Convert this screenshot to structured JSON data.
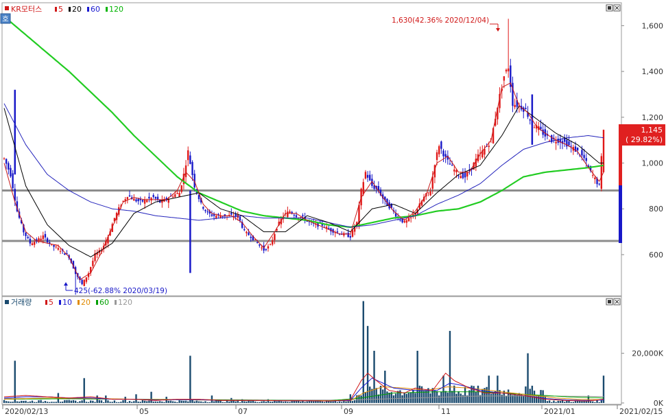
{
  "price_panel": {
    "stock_name": "KR모터스",
    "ma_legend": [
      {
        "label": "5",
        "color": "#d01818"
      },
      {
        "label": "20",
        "color": "#000000"
      },
      {
        "label": "60",
        "color": "#1a1ad0"
      },
      {
        "label": "120",
        "color": "#00b400"
      }
    ],
    "mode_icon_label": "호",
    "high_annotation": "1,630(42.36% 2020/12/04)",
    "low_annotation": "425(-62.88% 2020/03/19)",
    "current_price": "1,145",
    "current_change": "( 29.82%)",
    "y_ticks": [
      "1,600",
      "1,400",
      "1,200",
      "1,000",
      "800",
      "600"
    ]
  },
  "volume_panel": {
    "title": "거래량",
    "ma_legend": [
      {
        "label": "5",
        "color": "#d01818"
      },
      {
        "label": "10",
        "color": "#1a1ad0"
      },
      {
        "label": "20",
        "color": "#e08a00"
      },
      {
        "label": "60",
        "color": "#00a000"
      },
      {
        "label": "120",
        "color": "#999999"
      }
    ],
    "y_ticks": [
      "20,000K",
      "0K"
    ]
  },
  "x_axis": {
    "labels": [
      "2020/02/13",
      "05",
      "07",
      "09",
      "11",
      "2021/01",
      "2021/02/15"
    ]
  },
  "colors": {
    "up": "#e01818",
    "down": "#1818c8",
    "volume_bar": "#1a4a6e",
    "support_line": "#8c8c8c",
    "ma120": "#22cc22"
  },
  "chart_data": {
    "type": "candlestick",
    "y_range": [
      420,
      1700
    ],
    "horizontal_lines": [
      880,
      660
    ],
    "high": {
      "value": 1630,
      "date": "2020/12/04",
      "pct": 42.36
    },
    "low": {
      "value": 425,
      "date": "2020/03/19",
      "pct": -62.88
    },
    "last_close": 1145,
    "price_path": [
      [
        0,
        1020
      ],
      [
        3,
        950
      ],
      [
        6,
        790
      ],
      [
        9,
        700
      ],
      [
        12,
        650
      ],
      [
        15,
        660
      ],
      [
        18,
        680
      ],
      [
        22,
        640
      ],
      [
        26,
        620
      ],
      [
        30,
        590
      ],
      [
        33,
        520
      ],
      [
        36,
        470
      ],
      [
        39,
        520
      ],
      [
        42,
        600
      ],
      [
        45,
        620
      ],
      [
        48,
        680
      ],
      [
        51,
        760
      ],
      [
        54,
        820
      ],
      [
        57,
        860
      ],
      [
        60,
        840
      ],
      [
        63,
        830
      ],
      [
        66,
        840
      ],
      [
        69,
        850
      ],
      [
        72,
        830
      ],
      [
        75,
        840
      ],
      [
        78,
        860
      ],
      [
        81,
        870
      ],
      [
        83,
        950
      ],
      [
        85,
        1050
      ],
      [
        88,
        900
      ],
      [
        91,
        820
      ],
      [
        94,
        780
      ],
      [
        97,
        770
      ],
      [
        100,
        770
      ],
      [
        104,
        770
      ],
      [
        108,
        770
      ],
      [
        111,
        700
      ],
      [
        114,
        680
      ],
      [
        117,
        650
      ],
      [
        120,
        620
      ],
      [
        123,
        640
      ],
      [
        126,
        720
      ],
      [
        129,
        770
      ],
      [
        132,
        790
      ],
      [
        135,
        770
      ],
      [
        138,
        760
      ],
      [
        141,
        740
      ],
      [
        144,
        730
      ],
      [
        147,
        730
      ],
      [
        150,
        710
      ],
      [
        153,
        700
      ],
      [
        156,
        690
      ],
      [
        160,
        680
      ],
      [
        163,
        740
      ],
      [
        165,
        880
      ],
      [
        167,
        960
      ],
      [
        170,
        900
      ],
      [
        173,
        880
      ],
      [
        176,
        830
      ],
      [
        179,
        800
      ],
      [
        182,
        760
      ],
      [
        185,
        740
      ],
      [
        188,
        760
      ],
      [
        191,
        800
      ],
      [
        194,
        850
      ],
      [
        197,
        880
      ],
      [
        199,
        1000
      ],
      [
        201,
        1080
      ],
      [
        204,
        1020
      ],
      [
        207,
        980
      ],
      [
        210,
        950
      ],
      [
        213,
        940
      ],
      [
        216,
        980
      ],
      [
        219,
        1030
      ],
      [
        222,
        1060
      ],
      [
        225,
        1100
      ],
      [
        228,
        1250
      ],
      [
        231,
        1380
      ],
      [
        233,
        1420
      ],
      [
        235,
        1260
      ],
      [
        238,
        1250
      ],
      [
        241,
        1230
      ],
      [
        244,
        1170
      ],
      [
        247,
        1150
      ],
      [
        250,
        1120
      ],
      [
        253,
        1100
      ],
      [
        256,
        1100
      ],
      [
        259,
        1090
      ],
      [
        262,
        1070
      ],
      [
        265,
        1050
      ],
      [
        268,
        1020
      ],
      [
        271,
        960
      ],
      [
        273,
        930
      ],
      [
        275,
        900
      ],
      [
        277,
        1145
      ]
    ],
    "ma5_path": [
      [
        0,
        1000
      ],
      [
        5,
        830
      ],
      [
        10,
        700
      ],
      [
        15,
        660
      ],
      [
        20,
        650
      ],
      [
        25,
        640
      ],
      [
        30,
        590
      ],
      [
        35,
        490
      ],
      [
        40,
        520
      ],
      [
        45,
        610
      ],
      [
        50,
        720
      ],
      [
        55,
        830
      ],
      [
        60,
        850
      ],
      [
        65,
        840
      ],
      [
        70,
        840
      ],
      [
        75,
        840
      ],
      [
        80,
        880
      ],
      [
        84,
        960
      ],
      [
        88,
        920
      ],
      [
        92,
        820
      ],
      [
        96,
        780
      ],
      [
        100,
        770
      ],
      [
        105,
        770
      ],
      [
        110,
        740
      ],
      [
        115,
        680
      ],
      [
        120,
        630
      ],
      [
        125,
        700
      ],
      [
        130,
        780
      ],
      [
        135,
        780
      ],
      [
        140,
        750
      ],
      [
        145,
        730
      ],
      [
        150,
        710
      ],
      [
        155,
        690
      ],
      [
        160,
        690
      ],
      [
        165,
        850
      ],
      [
        170,
        920
      ],
      [
        175,
        850
      ],
      [
        180,
        790
      ],
      [
        185,
        750
      ],
      [
        190,
        790
      ],
      [
        195,
        860
      ],
      [
        200,
        1000
      ],
      [
        205,
        1030
      ],
      [
        210,
        960
      ],
      [
        215,
        960
      ],
      [
        220,
        1040
      ],
      [
        225,
        1100
      ],
      [
        230,
        1330
      ],
      [
        234,
        1350
      ],
      [
        238,
        1250
      ],
      [
        242,
        1220
      ],
      [
        246,
        1160
      ],
      [
        250,
        1130
      ],
      [
        255,
        1100
      ],
      [
        260,
        1080
      ],
      [
        265,
        1050
      ],
      [
        270,
        980
      ],
      [
        275,
        920
      ],
      [
        277,
        960
      ]
    ],
    "ma20_path": [
      [
        0,
        1240
      ],
      [
        10,
        900
      ],
      [
        20,
        730
      ],
      [
        30,
        640
      ],
      [
        40,
        590
      ],
      [
        50,
        650
      ],
      [
        60,
        780
      ],
      [
        70,
        830
      ],
      [
        80,
        850
      ],
      [
        90,
        870
      ],
      [
        100,
        800
      ],
      [
        110,
        770
      ],
      [
        120,
        700
      ],
      [
        130,
        700
      ],
      [
        140,
        770
      ],
      [
        150,
        740
      ],
      [
        160,
        700
      ],
      [
        170,
        800
      ],
      [
        180,
        820
      ],
      [
        190,
        780
      ],
      [
        200,
        870
      ],
      [
        210,
        950
      ],
      [
        220,
        990
      ],
      [
        230,
        1120
      ],
      [
        238,
        1250
      ],
      [
        245,
        1200
      ],
      [
        255,
        1130
      ],
      [
        265,
        1080
      ],
      [
        275,
        1000
      ]
    ],
    "ma60_path": [
      [
        0,
        1260
      ],
      [
        10,
        1080
      ],
      [
        20,
        950
      ],
      [
        30,
        880
      ],
      [
        40,
        830
      ],
      [
        50,
        800
      ],
      [
        60,
        790
      ],
      [
        70,
        770
      ],
      [
        80,
        760
      ],
      [
        90,
        750
      ],
      [
        100,
        760
      ],
      [
        110,
        770
      ],
      [
        120,
        760
      ],
      [
        130,
        760
      ],
      [
        140,
        760
      ],
      [
        150,
        740
      ],
      [
        160,
        720
      ],
      [
        170,
        730
      ],
      [
        180,
        750
      ],
      [
        190,
        770
      ],
      [
        200,
        820
      ],
      [
        210,
        860
      ],
      [
        220,
        910
      ],
      [
        230,
        990
      ],
      [
        240,
        1060
      ],
      [
        250,
        1090
      ],
      [
        260,
        1110
      ],
      [
        270,
        1120
      ],
      [
        277,
        1110
      ]
    ],
    "ma120_path": [
      [
        0,
        1640
      ],
      [
        10,
        1560
      ],
      [
        20,
        1480
      ],
      [
        30,
        1400
      ],
      [
        40,
        1310
      ],
      [
        50,
        1220
      ],
      [
        60,
        1120
      ],
      [
        70,
        1030
      ],
      [
        80,
        940
      ],
      [
        90,
        870
      ],
      [
        100,
        830
      ],
      [
        110,
        790
      ],
      [
        120,
        770
      ],
      [
        130,
        760
      ],
      [
        140,
        750
      ],
      [
        150,
        730
      ],
      [
        160,
        720
      ],
      [
        170,
        740
      ],
      [
        180,
        760
      ],
      [
        190,
        770
      ],
      [
        200,
        790
      ],
      [
        210,
        800
      ],
      [
        220,
        830
      ],
      [
        230,
        880
      ],
      [
        240,
        940
      ],
      [
        250,
        960
      ],
      [
        260,
        970
      ],
      [
        270,
        980
      ],
      [
        277,
        990
      ]
    ],
    "volume_range": [
      0,
      42000
    ],
    "volume_spikes": [
      [
        5,
        17000
      ],
      [
        25,
        4000
      ],
      [
        37,
        10000
      ],
      [
        43,
        3000
      ],
      [
        47,
        3000
      ],
      [
        56,
        2500
      ],
      [
        61,
        3500
      ],
      [
        68,
        4500
      ],
      [
        75,
        2500
      ],
      [
        86,
        19000
      ],
      [
        96,
        3000
      ],
      [
        105,
        2000
      ],
      [
        110,
        1500
      ],
      [
        122,
        1500
      ],
      [
        160,
        3500
      ],
      [
        166,
        41000
      ],
      [
        168,
        31000
      ],
      [
        171,
        21000
      ],
      [
        176,
        13000
      ],
      [
        191,
        21000
      ],
      [
        198,
        6000
      ],
      [
        203,
        11000
      ],
      [
        206,
        29000
      ],
      [
        208,
        7000
      ],
      [
        216,
        7000
      ],
      [
        224,
        11000
      ],
      [
        228,
        11000
      ],
      [
        236,
        4000
      ],
      [
        242,
        20000
      ],
      [
        270,
        3000
      ],
      [
        277,
        11000
      ]
    ],
    "volume_ma": {
      "ma5": [
        [
          0,
          2500
        ],
        [
          10,
          3000
        ],
        [
          20,
          2500
        ],
        [
          30,
          2000
        ],
        [
          40,
          2500
        ],
        [
          50,
          1500
        ],
        [
          60,
          1500
        ],
        [
          70,
          1000
        ],
        [
          80,
          1500
        ],
        [
          90,
          1500
        ],
        [
          100,
          1000
        ],
        [
          110,
          1000
        ],
        [
          120,
          1000
        ],
        [
          130,
          900
        ],
        [
          140,
          900
        ],
        [
          150,
          800
        ],
        [
          160,
          1200
        ],
        [
          165,
          9000
        ],
        [
          168,
          12000
        ],
        [
          172,
          9000
        ],
        [
          178,
          5000
        ],
        [
          185,
          4000
        ],
        [
          190,
          6000
        ],
        [
          198,
          5000
        ],
        [
          204,
          12000
        ],
        [
          208,
          9000
        ],
        [
          215,
          6000
        ],
        [
          222,
          4000
        ],
        [
          230,
          4000
        ],
        [
          240,
          3000
        ],
        [
          250,
          1500
        ],
        [
          260,
          1000
        ],
        [
          270,
          800
        ],
        [
          277,
          1500
        ]
      ],
      "ma10": [
        [
          0,
          2000
        ],
        [
          10,
          2500
        ],
        [
          20,
          2500
        ],
        [
          30,
          2000
        ],
        [
          40,
          2000
        ],
        [
          50,
          1500
        ],
        [
          60,
          1500
        ],
        [
          70,
          1200
        ],
        [
          80,
          1300
        ],
        [
          90,
          1300
        ],
        [
          100,
          1000
        ],
        [
          110,
          1000
        ],
        [
          120,
          1000
        ],
        [
          130,
          900
        ],
        [
          140,
          900
        ],
        [
          150,
          800
        ],
        [
          160,
          1000
        ],
        [
          165,
          6000
        ],
        [
          170,
          10000
        ],
        [
          175,
          8000
        ],
        [
          180,
          6000
        ],
        [
          190,
          5000
        ],
        [
          200,
          5000
        ],
        [
          206,
          8000
        ],
        [
          212,
          7000
        ],
        [
          220,
          5000
        ],
        [
          230,
          4000
        ],
        [
          240,
          3000
        ],
        [
          250,
          1800
        ],
        [
          260,
          1200
        ],
        [
          270,
          1000
        ],
        [
          277,
          1200
        ]
      ],
      "ma20": [
        [
          0,
          1500
        ],
        [
          20,
          2000
        ],
        [
          40,
          1800
        ],
        [
          60,
          1500
        ],
        [
          80,
          1300
        ],
        [
          100,
          1100
        ],
        [
          120,
          1000
        ],
        [
          140,
          900
        ],
        [
          160,
          900
        ],
        [
          166,
          4000
        ],
        [
          175,
          6500
        ],
        [
          185,
          6000
        ],
        [
          195,
          5000
        ],
        [
          205,
          6500
        ],
        [
          215,
          6000
        ],
        [
          225,
          5000
        ],
        [
          235,
          4000
        ],
        [
          245,
          3000
        ],
        [
          255,
          2000
        ],
        [
          265,
          1500
        ],
        [
          277,
          1300
        ]
      ],
      "ma60": [
        [
          0,
          1500
        ],
        [
          30,
          1700
        ],
        [
          60,
          1500
        ],
        [
          90,
          1300
        ],
        [
          120,
          1100
        ],
        [
          150,
          900
        ],
        [
          165,
          2000
        ],
        [
          180,
          4000
        ],
        [
          200,
          4500
        ],
        [
          220,
          4500
        ],
        [
          240,
          3500
        ],
        [
          260,
          2500
        ],
        [
          277,
          2000
        ]
      ],
      "ma120": [
        [
          0,
          1800
        ],
        [
          40,
          1600
        ],
        [
          80,
          1400
        ],
        [
          120,
          1200
        ],
        [
          160,
          1200
        ],
        [
          190,
          2000
        ],
        [
          220,
          2800
        ],
        [
          250,
          2800
        ],
        [
          277,
          2600
        ]
      ]
    }
  }
}
